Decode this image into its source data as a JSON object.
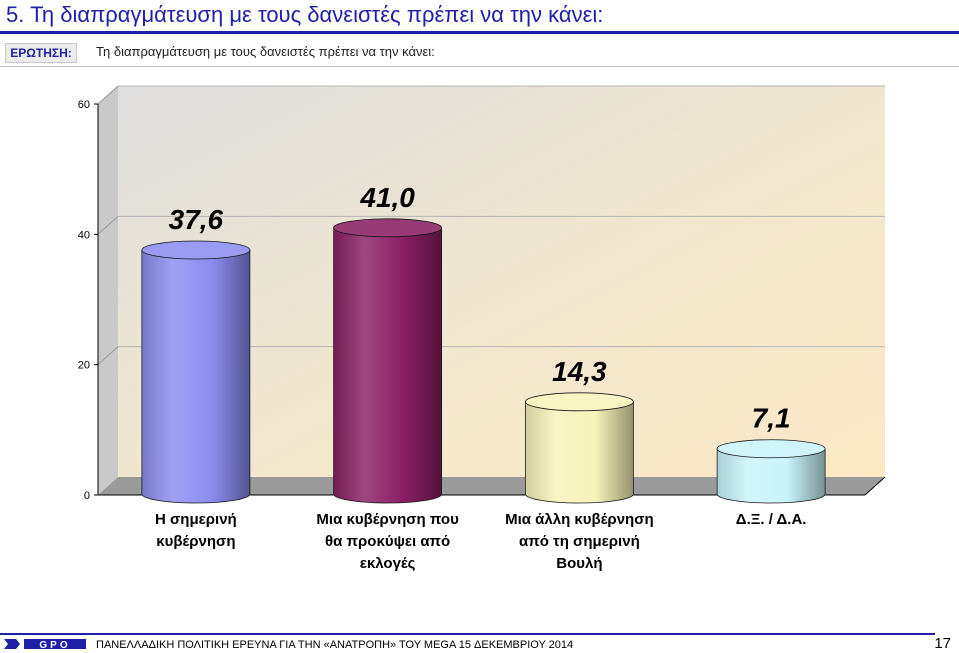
{
  "header": {
    "title": "5.   Τη διαπραγμάτευση με τους δανειστές πρέπει να την κάνει:"
  },
  "question": {
    "label": "ΕΡΩΤΗΣΗ:",
    "text": "Τη διαπραγμάτευση με τους δανειστές πρέπει να την κάνει:"
  },
  "chart_data": {
    "type": "bar",
    "title": "",
    "xlabel": "",
    "ylabel": "",
    "ylim": [
      0,
      60
    ],
    "yticks": [
      "0",
      "20",
      "40",
      "60"
    ],
    "grid": true,
    "categories": [
      [
        "Η σημερινή",
        "κυβέρνηση"
      ],
      [
        "Μια κυβέρνηση που",
        "θα προκύψει από",
        "εκλογές"
      ],
      [
        "Μια άλλη κυβέρνηση",
        "από τη σημερινή",
        "Βουλή"
      ],
      [
        "Δ.Ξ. / Δ.Α."
      ]
    ],
    "values": [
      37.6,
      41.0,
      14.3,
      7.1
    ],
    "value_labels": [
      "37,6",
      "41,0",
      "14,3",
      "7,1"
    ],
    "colors": [
      "#8b8cf0",
      "#8a1f63",
      "#f6f2b8",
      "#c8f3f9"
    ]
  },
  "footer": {
    "logo": "GPO",
    "text": "ΠΑΝΕΛΛΑΔΙΚΗ ΠΟΛΙΤΙΚΗ ΕΡΕΥΝΑ ΓΙΑ ΤΗΝ «ΑΝΑΤΡΟΠΗ» ΤΟΥ MEGA  15 ΔΕΚΕΜΒΡΙΟΥ  2014",
    "page": "17"
  }
}
